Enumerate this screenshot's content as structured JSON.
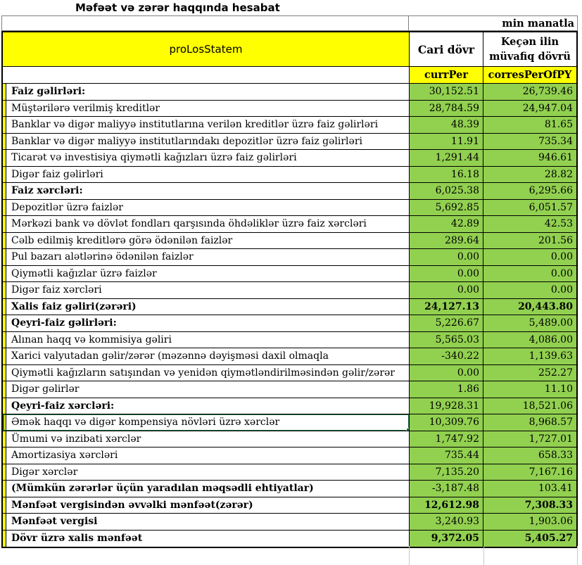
{
  "title": "Məfəət və zərər haqqında hesabat",
  "unit_note": "min manatla",
  "header": {
    "name_cell": "proLosStatem",
    "col_current": "Cari dövr",
    "col_previous_line1": "Keçən ilin",
    "col_previous_line2": "müvafiq dövrü",
    "code_current": "currPer",
    "code_previous": "corresPerOfPY"
  },
  "colors": {
    "cell_green": "#92D050",
    "cell_yellow": "#FFFF00",
    "selection_green": "#217346",
    "table_border": "#000000",
    "gridline_gray": "#C9C9C9"
  },
  "rows": [
    {
      "label": "Faiz gəlirləri:",
      "cur": "30,152.51",
      "prev": "26,739.46",
      "bold_label": true,
      "bold_values": false,
      "selected": false
    },
    {
      "label": "Müştərilərə verilmiş kreditlər",
      "cur": "28,784.59",
      "prev": "24,947.04",
      "bold_label": false,
      "bold_values": false,
      "selected": false
    },
    {
      "label": "Banklar və digər maliyyə institutlarına verilən kreditlər üzrə faiz gəlirləri",
      "cur": "48.39",
      "prev": "81.65",
      "bold_label": false,
      "bold_values": false,
      "selected": false
    },
    {
      "label": "Banklar və digər maliyyə institutlarındakı depozitlər üzrə faiz gəlirləri",
      "cur": "11.91",
      "prev": "735.34",
      "bold_label": false,
      "bold_values": false,
      "selected": false
    },
    {
      "label": "Ticarət və investisiya qiymətli kağızları üzrə faiz gəlirləri",
      "cur": "1,291.44",
      "prev": "946.61",
      "bold_label": false,
      "bold_values": false,
      "selected": false
    },
    {
      "label": "Digər faiz gəlirləri",
      "cur": "16.18",
      "prev": "28.82",
      "bold_label": false,
      "bold_values": false,
      "selected": false
    },
    {
      "label": "Faiz xərcləri:",
      "cur": "6,025.38",
      "prev": "6,295.66",
      "bold_label": true,
      "bold_values": false,
      "selected": false
    },
    {
      "label": "Depozitlər üzrə faizlər",
      "cur": "5,692.85",
      "prev": "6,051.57",
      "bold_label": false,
      "bold_values": false,
      "selected": false
    },
    {
      "label": "Mərkəzi bank və dövlət fondları qarşısında öhdəliklər üzrə faiz xərcləri",
      "cur": "42.89",
      "prev": "42.53",
      "bold_label": false,
      "bold_values": false,
      "selected": false
    },
    {
      "label": "Cəlb edilmiş kreditlərə görə ödənilən faizlər",
      "cur": "289.64",
      "prev": "201.56",
      "bold_label": false,
      "bold_values": false,
      "selected": false
    },
    {
      "label": "Pul bazarı alətlərinə ödənilən faizlər",
      "cur": "0.00",
      "prev": "0.00",
      "bold_label": false,
      "bold_values": false,
      "selected": false
    },
    {
      "label": "Qiymətli kağızlar üzrə faizlər",
      "cur": "0.00",
      "prev": "0.00",
      "bold_label": false,
      "bold_values": false,
      "selected": false
    },
    {
      "label": "Digər faiz xərcləri",
      "cur": "0.00",
      "prev": "0.00",
      "bold_label": false,
      "bold_values": false,
      "selected": false
    },
    {
      "label": "Xalis faiz gəliri(zərəri)",
      "cur": "24,127.13",
      "prev": "20,443.80",
      "bold_label": true,
      "bold_values": true,
      "selected": false
    },
    {
      "label": "Qeyri-faiz gəlirləri:",
      "cur": "5,226.67",
      "prev": "5,489.00",
      "bold_label": true,
      "bold_values": false,
      "selected": false
    },
    {
      "label": "Alınan haqq və kommisiya gəliri",
      "cur": "5,565.03",
      "prev": "4,086.00",
      "bold_label": false,
      "bold_values": false,
      "selected": false
    },
    {
      "label": "Xarici valyutadan gəlir/zərər (məzənnə dəyişməsi daxil olmaqla",
      "cur": "-340.22",
      "prev": "1,139.63",
      "bold_label": false,
      "bold_values": false,
      "selected": false
    },
    {
      "label": "Qiymətli kağızların satışından və yenidən qiymətləndirilməsindən gəlir/zərər",
      "cur": "0.00",
      "prev": "252.27",
      "bold_label": false,
      "bold_values": false,
      "selected": false
    },
    {
      "label": "Digər gəlirlər",
      "cur": "1.86",
      "prev": "11.10",
      "bold_label": false,
      "bold_values": false,
      "selected": false
    },
    {
      "label": "Qeyri-faiz xərcləri:",
      "cur": "19,928.31",
      "prev": "18,521.06",
      "bold_label": true,
      "bold_values": false,
      "selected": false
    },
    {
      "label": "Əmək haqqı və digər kompensiya növləri üzrə xərclər",
      "cur": "10,309.76",
      "prev": "8,968.57",
      "bold_label": false,
      "bold_values": false,
      "selected": true
    },
    {
      "label": "Ümumi və inzibati xərclər",
      "cur": "1,747.92",
      "prev": "1,727.01",
      "bold_label": false,
      "bold_values": false,
      "selected": false
    },
    {
      "label": "Amortizasiya xərcləri",
      "cur": "735.44",
      "prev": "658.33",
      "bold_label": false,
      "bold_values": false,
      "selected": false
    },
    {
      "label": "Digər xərclər",
      "cur": "7,135.20",
      "prev": "7,167.16",
      "bold_label": false,
      "bold_values": false,
      "selected": false
    },
    {
      "label": "(Mümkün zərərlər üçün yaradılan məqsədli ehtiyatlar)",
      "cur": "-3,187.48",
      "prev": "103.41",
      "bold_label": true,
      "bold_values": false,
      "selected": false
    },
    {
      "label": "Mənfəət vergisindən əvvəlki mənfəət(zərər)",
      "cur": "12,612.98",
      "prev": "7,308.33",
      "bold_label": true,
      "bold_values": true,
      "selected": false
    },
    {
      "label": "Mənfəət vergisi",
      "cur": "3,240.93",
      "prev": "1,903.06",
      "bold_label": true,
      "bold_values": false,
      "selected": false
    },
    {
      "label": "Dövr üzrə xalis mənfəət",
      "cur": "9,372.05",
      "prev": "5,405.27",
      "bold_label": true,
      "bold_values": true,
      "selected": false
    }
  ]
}
